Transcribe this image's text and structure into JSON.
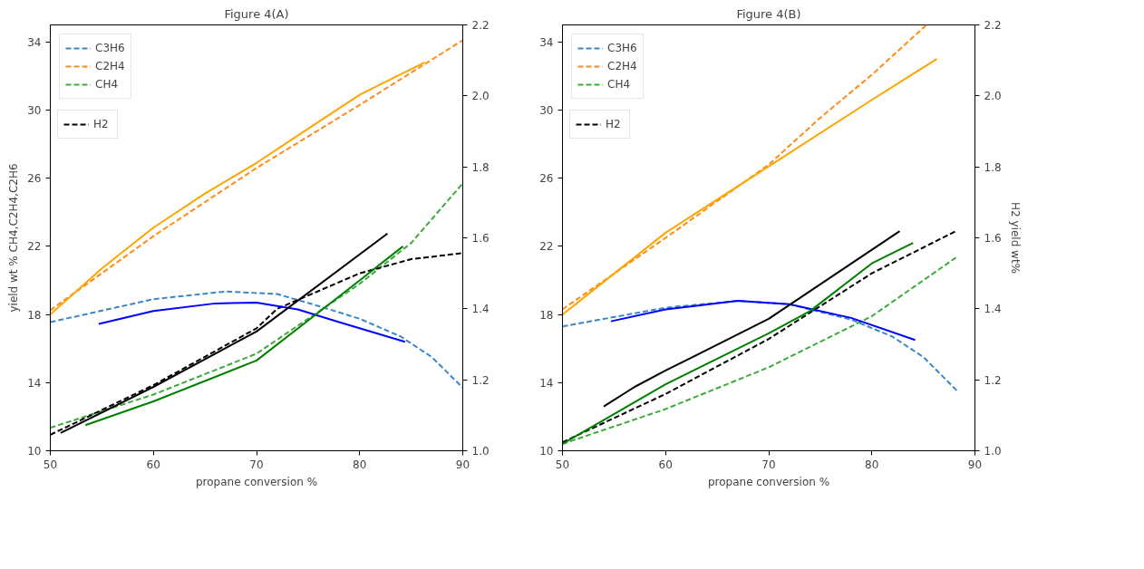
{
  "chart_data": [
    {
      "type": "line",
      "title": "Figure 4(A)",
      "xlabel": "propane conversion %",
      "ylabel": "yield wt % CH4,C2H4,C2H6",
      "legend": "top left",
      "xlim": [
        50,
        90
      ],
      "xticks": [
        50,
        60,
        70,
        80,
        90
      ],
      "ylim": [
        10,
        35
      ],
      "yticks": [
        10,
        14,
        18,
        22,
        26,
        30,
        34
      ],
      "y2lim": [
        1.0,
        2.2
      ],
      "y2ticks": [
        {
          "value": 1.0,
          "label": "1.0"
        },
        {
          "value": 1.2,
          "label": "1.2"
        },
        {
          "value": 1.4,
          "label": "1.4"
        },
        {
          "value": 1.6,
          "label": "1.6"
        },
        {
          "value": 1.8,
          "label": "1.8"
        },
        {
          "value": 2.0,
          "label": "2.0"
        },
        {
          "value": 2.2,
          "label": "2.2"
        }
      ],
      "series": [
        {
          "name": "C3H6",
          "color": "#3a87c8",
          "line_style": "dashed",
          "x": [
            50,
            60,
            67,
            72,
            76,
            80,
            84,
            87,
            90
          ],
          "values": [
            17.55,
            18.9,
            19.35,
            19.2,
            18.5,
            17.75,
            16.7,
            15.5,
            13.7
          ]
        },
        {
          "name": "C2H4",
          "color": "#ff8c1a",
          "line_style": "dashed",
          "x": [
            50,
            60,
            70,
            80,
            90
          ],
          "values": [
            18.25,
            22.6,
            26.6,
            30.3,
            34.1
          ]
        },
        {
          "name": "CH4",
          "color": "#3cab3c",
          "line_style": "dashed",
          "x": [
            50,
            60,
            70,
            80,
            85,
            90
          ],
          "values": [
            11.35,
            13.3,
            15.7,
            19.8,
            22.2,
            25.7
          ]
        },
        {
          "name": "H2",
          "color": "#000000",
          "line_style": "dashed",
          "axis": "y2",
          "x": [
            50,
            60,
            70,
            72,
            80,
            85,
            90
          ],
          "values": [
            1.045,
            1.185,
            1.345,
            1.4,
            1.5,
            1.54,
            1.557
          ]
        },
        {
          "color": "#0000ff",
          "line_style": "solid",
          "x": [
            54.7,
            60,
            66,
            70,
            74,
            78,
            84.4
          ],
          "values": [
            17.45,
            18.2,
            18.65,
            18.7,
            18.3,
            17.55,
            16.4
          ]
        },
        {
          "color": "#ffa500",
          "line_style": "solid",
          "x": [
            50,
            55,
            60,
            65,
            70,
            75,
            80,
            86.3
          ],
          "values": [
            18.0,
            20.7,
            23.1,
            25.1,
            26.9,
            28.9,
            30.9,
            32.8
          ]
        },
        {
          "color": "#008000",
          "line_style": "solid",
          "x": [
            53.4,
            60,
            70,
            75,
            80,
            84.2
          ],
          "values": [
            11.5,
            12.9,
            15.3,
            17.65,
            20.0,
            22.0
          ]
        },
        {
          "color": "#000000",
          "line_style": "solid",
          "axis": "y2",
          "x": [
            51,
            60,
            70,
            82.7
          ],
          "values": [
            1.05,
            1.18,
            1.336,
            1.612
          ]
        }
      ]
    },
    {
      "type": "line",
      "title": "Figure 4(B)",
      "xlabel": "propane conversion %",
      "y2label": "H2 yield wt%",
      "legend": "top left",
      "xlim": [
        50,
        90
      ],
      "xticks": [
        50,
        60,
        70,
        80,
        90
      ],
      "ylim": [
        10,
        35
      ],
      "yticks": [
        10,
        14,
        18,
        22,
        26,
        30,
        34
      ],
      "y2lim": [
        1.0,
        2.2
      ],
      "y2ticks": [
        {
          "value": 1.0,
          "label": "1.0"
        },
        {
          "value": 1.2,
          "label": "1.2"
        },
        {
          "value": 1.4,
          "label": "1.4"
        },
        {
          "value": 1.6,
          "label": "1.6"
        },
        {
          "value": 1.8,
          "label": "1.8"
        },
        {
          "value": 2.0,
          "label": "2.0"
        },
        {
          "value": 2.2,
          "label": "2.2"
        }
      ],
      "series": [
        {
          "name": "C3H6",
          "color": "#3a87c8",
          "line_style": "dashed",
          "x": [
            50,
            60,
            67,
            72,
            78,
            82,
            85,
            88.3
          ],
          "values": [
            17.3,
            18.4,
            18.8,
            18.6,
            17.7,
            16.7,
            15.5,
            13.5
          ]
        },
        {
          "name": "C2H4",
          "color": "#ff8c1a",
          "line_style": "dashed",
          "x": [
            50,
            60,
            70,
            75,
            80,
            85.3
          ],
          "values": [
            18.3,
            22.5,
            26.8,
            29.55,
            32.07,
            35.0
          ]
        },
        {
          "name": "CH4",
          "color": "#3cab3c",
          "line_style": "dashed",
          "x": [
            50,
            60,
            70,
            80,
            88.3
          ],
          "values": [
            10.4,
            12.45,
            14.9,
            17.9,
            21.4
          ]
        },
        {
          "name": "H2",
          "color": "#000000",
          "line_style": "dashed",
          "axis": "y2",
          "x": [
            50,
            60,
            70,
            80,
            88.3
          ],
          "values": [
            1.024,
            1.16,
            1.315,
            1.5,
            1.621
          ]
        },
        {
          "color": "#0000ff",
          "line_style": "solid",
          "x": [
            54.7,
            60,
            67,
            72,
            78,
            84.2
          ],
          "values": [
            17.6,
            18.3,
            18.8,
            18.6,
            17.8,
            16.5
          ]
        },
        {
          "color": "#ffa500",
          "line_style": "solid",
          "x": [
            50,
            60,
            70,
            80,
            86.3
          ],
          "values": [
            18.0,
            22.8,
            26.7,
            30.6,
            33.0
          ]
        },
        {
          "color": "#008000",
          "line_style": "solid",
          "x": [
            50,
            60,
            70,
            74,
            80,
            84
          ],
          "values": [
            10.4,
            13.9,
            16.9,
            18.2,
            21.0,
            22.2
          ]
        },
        {
          "color": "#000000",
          "line_style": "solid",
          "axis": "y2",
          "x": [
            54,
            57,
            60,
            70,
            82.7
          ],
          "values": [
            1.125,
            1.18,
            1.226,
            1.372,
            1.619
          ]
        }
      ]
    }
  ]
}
